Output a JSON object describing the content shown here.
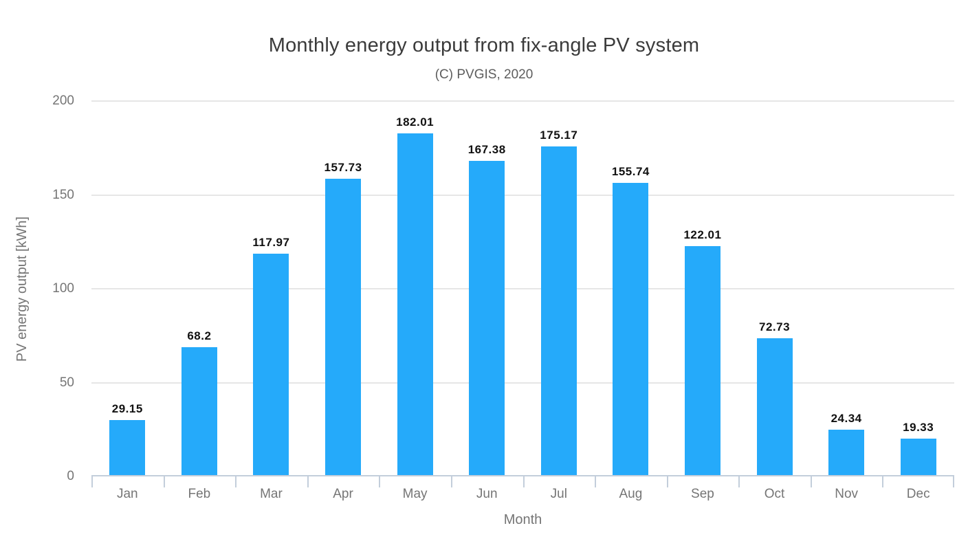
{
  "chart_data": {
    "type": "bar",
    "title": "Monthly energy output from fix-angle PV system",
    "subtitle": "(C) PVGIS, 2020",
    "xlabel": "Month",
    "ylabel": "PV energy output [kWh]",
    "categories": [
      "Jan",
      "Feb",
      "Mar",
      "Apr",
      "May",
      "Jun",
      "Jul",
      "Aug",
      "Sep",
      "Oct",
      "Nov",
      "Dec"
    ],
    "values": [
      29.15,
      68.2,
      117.97,
      157.73,
      182.01,
      167.38,
      175.17,
      155.74,
      122.01,
      72.73,
      24.34,
      19.33
    ],
    "value_labels": [
      "29.15",
      "68.2",
      "117.97",
      "157.73",
      "182.01",
      "167.38",
      "175.17",
      "155.74",
      "122.01",
      "72.73",
      "24.34",
      "19.33"
    ],
    "ylim": [
      0,
      200
    ],
    "yticks": [
      0,
      50,
      100,
      150,
      200
    ],
    "grid": true,
    "legend": "none",
    "colors": {
      "bar": "#25aafa",
      "gridline": "#e6e6e6",
      "axis_line": "#c3cedb",
      "tick": "#c3cedb",
      "axis_text": "#757575",
      "title_text": "#3b3b3b",
      "subtitle_text": "#5d5d5d",
      "value_label_text": "#111111",
      "background": "#ffffff"
    }
  }
}
